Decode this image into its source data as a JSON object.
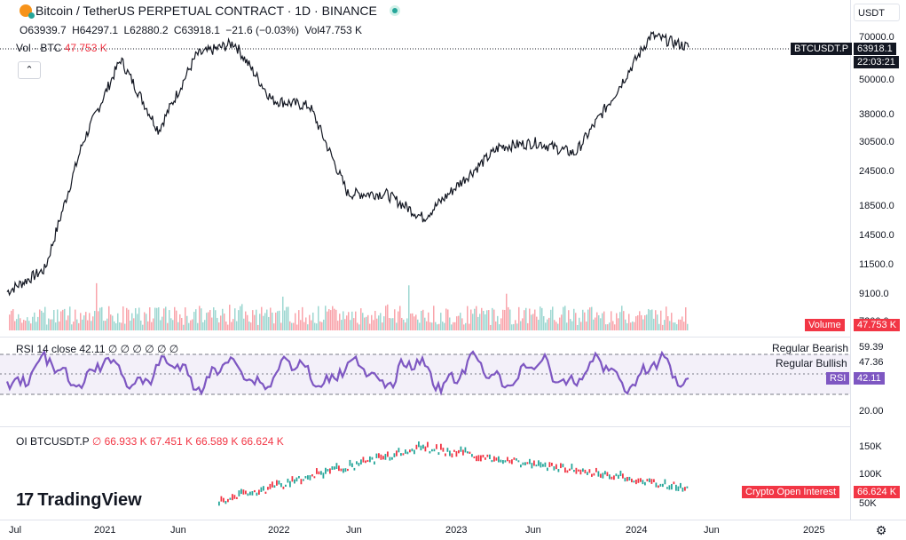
{
  "header": {
    "title": "Bitcoin / TetherUS PERPETUAL CONTRACT · 1D · BINANCE",
    "ohlc": {
      "o": "O63939.7",
      "h": "H64297.1",
      "l": "L62880.2",
      "c": "C63918.1",
      "change": "−21.6 (−0.03%)",
      "vol": "Vol47.753 K"
    },
    "currency": "USDT"
  },
  "volume_legend": {
    "label": "Vol · BTC",
    "value": "47.753 K"
  },
  "price_axis": [
    "70000.0",
    "50000.0",
    "38000.0",
    "30500.0",
    "24500.0",
    "18500.0",
    "14500.0",
    "11500.0",
    "9100.0",
    "7200.0"
  ],
  "price_tags": {
    "symbol": "BTCUSDT.P",
    "price": "63918.1",
    "countdown": "22:03:21",
    "volume_label": "Volume",
    "volume_value": "47.753 K"
  },
  "rsi": {
    "legend": "RSI 14 close 42.11 ∅ ∅ ∅ ∅ ∅ ∅",
    "notes": [
      "Regular Bearish",
      "Regular Bullish"
    ],
    "axis": [
      "59.39",
      "47.36",
      "20.00"
    ],
    "tag_label": "RSI",
    "tag_value": "42.11",
    "line_color": "#7e57c2"
  },
  "oi": {
    "legend_name": "OI BTCUSDT.P",
    "legend_values": "∅ 66.933 K 67.451 K 66.589 K 66.624 K",
    "axis": [
      "150K",
      "100K",
      "50K"
    ],
    "tag_label": "Crypto Open Interest",
    "tag_value": "66.624 K"
  },
  "time_axis": [
    "Jul",
    "2021",
    "Jun",
    "2022",
    "Jun",
    "2023",
    "Jun",
    "2024",
    "Jun",
    "2025"
  ],
  "brand": "TradingView",
  "colors": {
    "up": "#26a69a",
    "down": "#f23645",
    "line": "#131722",
    "rsi": "#7e57c2"
  },
  "chart_data": {
    "type": "line",
    "title": "Bitcoin / TetherUS PERPETUAL CONTRACT · 1D · BINANCE",
    "x": [
      "2020-07",
      "2020-10",
      "2021-01",
      "2021-04",
      "2021-07",
      "2021-10",
      "2021-11",
      "2022-01",
      "2022-04",
      "2022-06",
      "2022-09",
      "2022-11",
      "2023-01",
      "2023-04",
      "2023-07",
      "2023-10",
      "2024-01",
      "2024-03",
      "2024-04"
    ],
    "series": [
      {
        "values": [
          9200,
          11000,
          30000,
          58000,
          33000,
          60000,
          66000,
          42000,
          40000,
          20000,
          20000,
          16500,
          22000,
          29000,
          30000,
          27500,
          43000,
          70000,
          63918.1
        ]
      }
    ],
    "ylabel": "",
    "log_scale": true
  }
}
